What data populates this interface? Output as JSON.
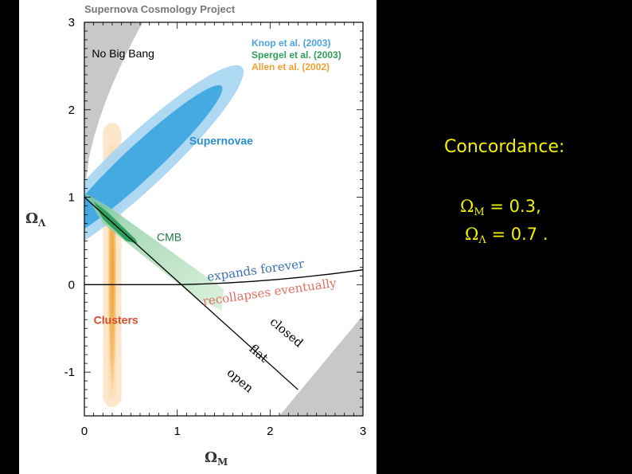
{
  "chart_data": {
    "type": "contour",
    "title": "Supernova Cosmology Project",
    "xlabel": "Ω_M",
    "ylabel": "Ω_Λ",
    "xlim": [
      0,
      3
    ],
    "ylim": [
      -1.5,
      3
    ],
    "x_ticks": [
      "0",
      "1",
      "2",
      "3"
    ],
    "y_ticks": [
      "-1",
      "0",
      "1",
      "2",
      "3"
    ],
    "legend": [
      {
        "name": "Knop et al. (2003)",
        "color": "#4aa3df"
      },
      {
        "name": "Spergel et al. (2003)",
        "color": "#2e9e5b"
      },
      {
        "name": "Allen et al. (2002)",
        "color": "#f0a030"
      }
    ],
    "regions": {
      "no_big_bang": "No Big Bang",
      "supernovae": "Supernovae",
      "cmb": "CMB",
      "clusters": "Clusters"
    },
    "lines": {
      "expands": "expands forever",
      "recollapses": "recollapses eventually",
      "closed": "closed",
      "flat": "flat",
      "open": "open"
    },
    "supernovae_center": {
      "x": 0.6,
      "y": 1.4
    },
    "cmb_center": {
      "x": 0.3,
      "y": 0.7
    },
    "clusters_x": 0.3
  },
  "side_text": {
    "heading": "Concordance:",
    "omega": "Ω",
    "m_sub": "M",
    "lambda_sub": "Λ",
    "m_value": " = 0.3,",
    "lambda_value": " = 0.7 ."
  }
}
